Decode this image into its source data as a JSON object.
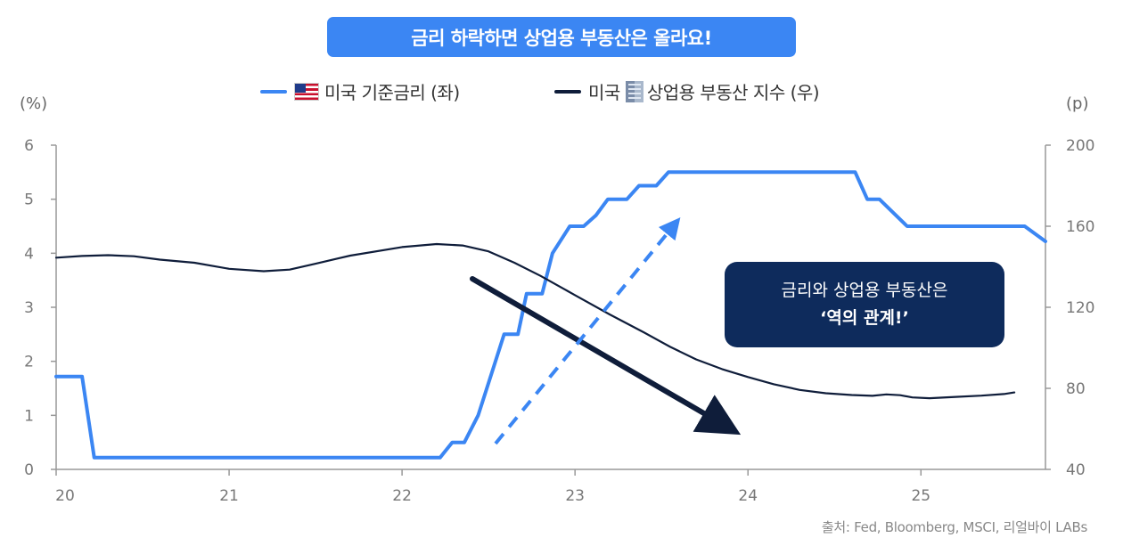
{
  "header": {
    "title": "금리 하락하면 상업용 부동산은 올라요!"
  },
  "legend": {
    "rate_label": "미국 기준금리 (좌)",
    "index_label_prefix": "미국",
    "index_label_suffix": "상업용 부동산 지수 (우)"
  },
  "units": {
    "left": "(%)",
    "right": "(p)"
  },
  "callout": {
    "line1": "금리와 상업용 부동산은",
    "line2": "‘역의 관계!’"
  },
  "source": "출처: Fed, Bloomberg, MSCI, 리얼바이 LABs",
  "icons": {
    "rate_series_icon": "us-flag-icon",
    "index_series_icon": "office-building-icon"
  },
  "colors": {
    "accent": "#3b86f3",
    "navy": "#0e2b5c",
    "index_line": "#0f1d3a"
  },
  "chart_data": {
    "type": "line",
    "xlim": [
      2020.0,
      2025.72
    ],
    "x_ticks": [
      {
        "value": 2020,
        "label": "20"
      },
      {
        "value": 2021,
        "label": "21"
      },
      {
        "value": 2022,
        "label": "22"
      },
      {
        "value": 2023,
        "label": "23"
      },
      {
        "value": 2024,
        "label": "24"
      },
      {
        "value": 2025,
        "label": "25"
      }
    ],
    "y_left": {
      "range": [
        0,
        6
      ],
      "ticks": [
        0,
        1,
        2,
        3,
        4,
        5,
        6
      ]
    },
    "y_right": {
      "range": [
        40,
        200
      ],
      "ticks": [
        40,
        80,
        120,
        160,
        200
      ]
    },
    "grid": false,
    "legend_position": "top-center",
    "series": [
      {
        "name": "미국 기준금리 (좌)",
        "axis": "left",
        "color": "#3b86f3",
        "points": [
          [
            2020.0,
            1.72
          ],
          [
            2020.15,
            1.72
          ],
          [
            2020.22,
            0.22
          ],
          [
            2021.0,
            0.22
          ],
          [
            2022.0,
            0.22
          ],
          [
            2022.22,
            0.22
          ],
          [
            2022.29,
            0.5
          ],
          [
            2022.36,
            0.5
          ],
          [
            2022.44,
            1.0
          ],
          [
            2022.53,
            1.9
          ],
          [
            2022.59,
            2.5
          ],
          [
            2022.67,
            2.5
          ],
          [
            2022.72,
            3.25
          ],
          [
            2022.81,
            3.25
          ],
          [
            2022.87,
            4.0
          ],
          [
            2022.97,
            4.5
          ],
          [
            2023.05,
            4.5
          ],
          [
            2023.12,
            4.7
          ],
          [
            2023.19,
            5.0
          ],
          [
            2023.3,
            5.0
          ],
          [
            2023.37,
            5.25
          ],
          [
            2023.47,
            5.25
          ],
          [
            2023.54,
            5.5
          ],
          [
            2024.0,
            5.5
          ],
          [
            2024.62,
            5.5
          ],
          [
            2024.69,
            5.0
          ],
          [
            2024.76,
            5.0
          ],
          [
            2024.84,
            4.75
          ],
          [
            2024.92,
            4.5
          ],
          [
            2025.0,
            4.5
          ],
          [
            2025.6,
            4.5
          ],
          [
            2025.72,
            4.22
          ]
        ]
      },
      {
        "name": "미국 상업용 부동산 지수 (우)",
        "axis": "right",
        "color": "#0f1d3a",
        "points": [
          [
            2020.0,
            144.5
          ],
          [
            2020.15,
            145.3
          ],
          [
            2020.3,
            145.7
          ],
          [
            2020.45,
            145.2
          ],
          [
            2020.6,
            143.5
          ],
          [
            2020.8,
            142.0
          ],
          [
            2021.0,
            139.0
          ],
          [
            2021.2,
            137.8
          ],
          [
            2021.35,
            138.6
          ],
          [
            2021.5,
            141.5
          ],
          [
            2021.7,
            145.5
          ],
          [
            2022.0,
            149.7
          ],
          [
            2022.2,
            151.2
          ],
          [
            2022.35,
            150.5
          ],
          [
            2022.5,
            147.6
          ],
          [
            2022.65,
            142.0
          ],
          [
            2022.8,
            135.5
          ],
          [
            2023.0,
            126.0
          ],
          [
            2023.2,
            116.5
          ],
          [
            2023.4,
            107.5
          ],
          [
            2023.55,
            100.5
          ],
          [
            2023.7,
            94.3
          ],
          [
            2023.85,
            89.5
          ],
          [
            2024.0,
            85.6
          ],
          [
            2024.15,
            82.0
          ],
          [
            2024.3,
            79.2
          ],
          [
            2024.45,
            77.6
          ],
          [
            2024.6,
            76.7
          ],
          [
            2024.72,
            76.3
          ],
          [
            2024.8,
            77.0
          ],
          [
            2024.88,
            76.6
          ],
          [
            2024.95,
            75.5
          ],
          [
            2025.05,
            75.1
          ],
          [
            2025.2,
            75.8
          ],
          [
            2025.35,
            76.4
          ],
          [
            2025.48,
            77.2
          ],
          [
            2025.54,
            78.0
          ]
        ]
      }
    ]
  }
}
